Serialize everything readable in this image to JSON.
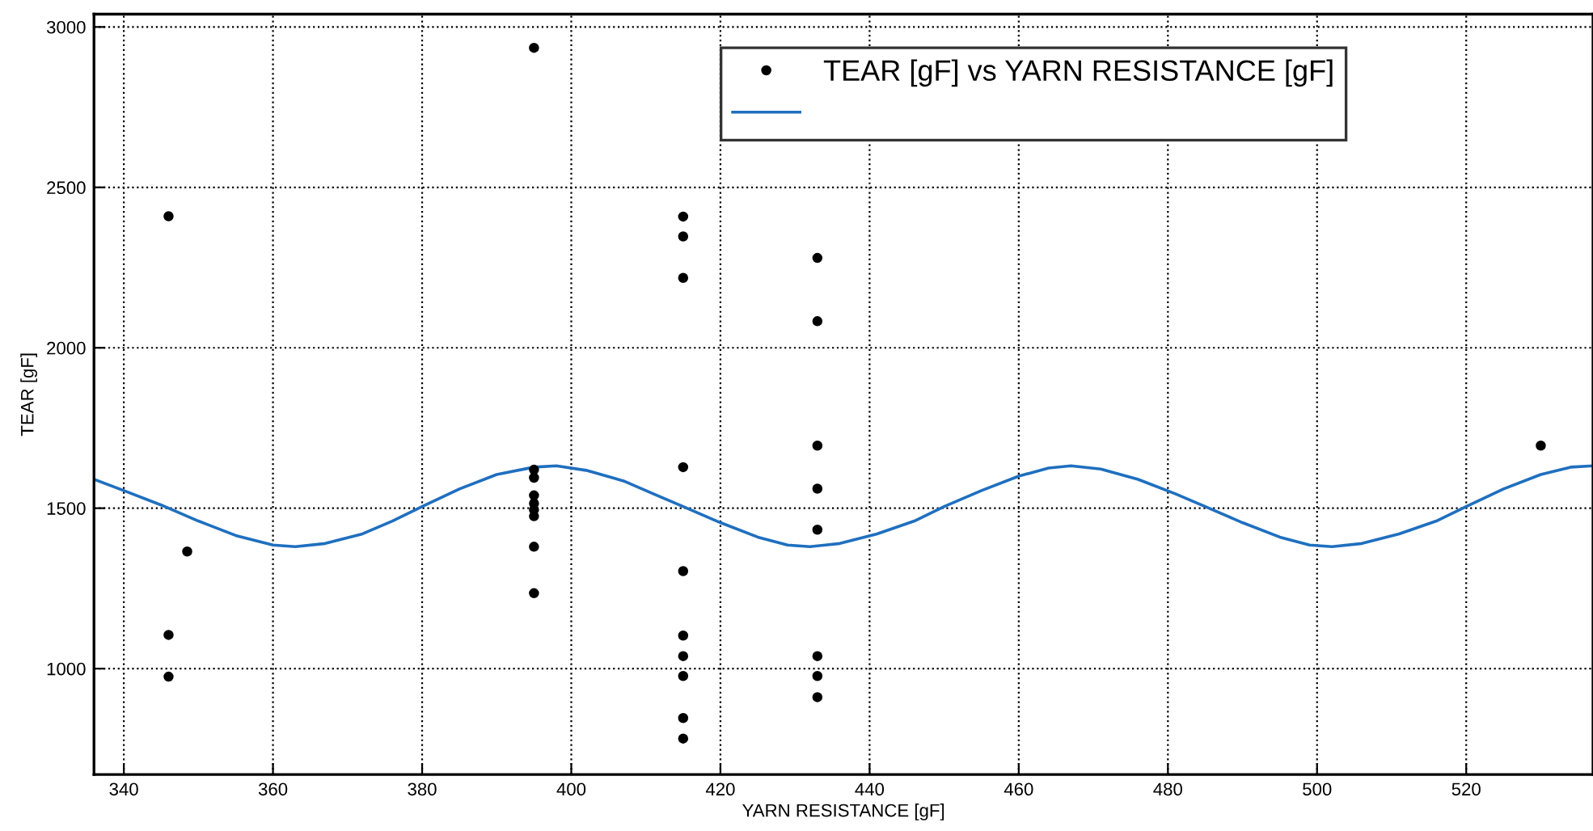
{
  "chart_data": {
    "type": "scatter",
    "xlabel": "YARN RESISTANCE [gF]",
    "ylabel": "TEAR [gF]",
    "xlim": [
      336,
      537
    ],
    "ylim": [
      670,
      3040
    ],
    "xticks": [
      340,
      360,
      380,
      400,
      420,
      440,
      460,
      480,
      500,
      520
    ],
    "yticks": [
      1000,
      1500,
      2000,
      2500,
      3000
    ],
    "grid": true,
    "legend": "top right",
    "series": [
      {
        "name": "TEAR [gF] vs YARN RESISTANCE [gF]",
        "marker": "circle",
        "color": "#000000",
        "x": [
          346,
          346,
          346,
          348.5,
          395,
          395,
          395,
          395,
          395,
          395,
          395,
          395,
          395,
          415,
          415,
          415,
          415,
          415,
          415,
          415,
          415,
          415,
          415,
          433,
          433,
          433,
          433,
          433,
          433,
          433,
          433,
          530
        ],
        "values": [
          2410,
          1105,
          975,
          1365,
          2935,
          1620,
          1595,
          1540,
          1515,
          1495,
          1475,
          1380,
          1235,
          2409,
          2347,
          2218,
          1628,
          1304,
          1103,
          1039,
          977,
          846,
          782,
          2280,
          2083,
          1695,
          1561,
          1433,
          1039,
          977,
          911,
          1695
        ]
      },
      {
        "type": "line",
        "color": "#1f6fbf",
        "x": [
          336,
          340,
          345,
          350,
          355,
          360,
          363,
          367,
          372,
          376,
          380,
          385,
          390,
          395,
          398,
          402,
          407,
          411,
          415,
          420,
          425,
          429,
          432,
          436,
          441,
          446,
          450,
          455,
          460,
          464,
          467,
          471,
          476,
          481,
          485,
          490,
          495,
          499,
          502,
          506,
          511,
          516,
          520,
          525,
          530,
          534,
          537
        ],
        "values": [
          1590,
          1555,
          1510,
          1460,
          1415,
          1385,
          1380,
          1390,
          1420,
          1460,
          1505,
          1560,
          1605,
          1628,
          1632,
          1618,
          1585,
          1545,
          1505,
          1455,
          1410,
          1385,
          1380,
          1390,
          1420,
          1460,
          1505,
          1555,
          1600,
          1625,
          1632,
          1622,
          1590,
          1545,
          1505,
          1455,
          1410,
          1385,
          1380,
          1390,
          1420,
          1460,
          1505,
          1560,
          1605,
          1628,
          1632
        ]
      }
    ]
  }
}
